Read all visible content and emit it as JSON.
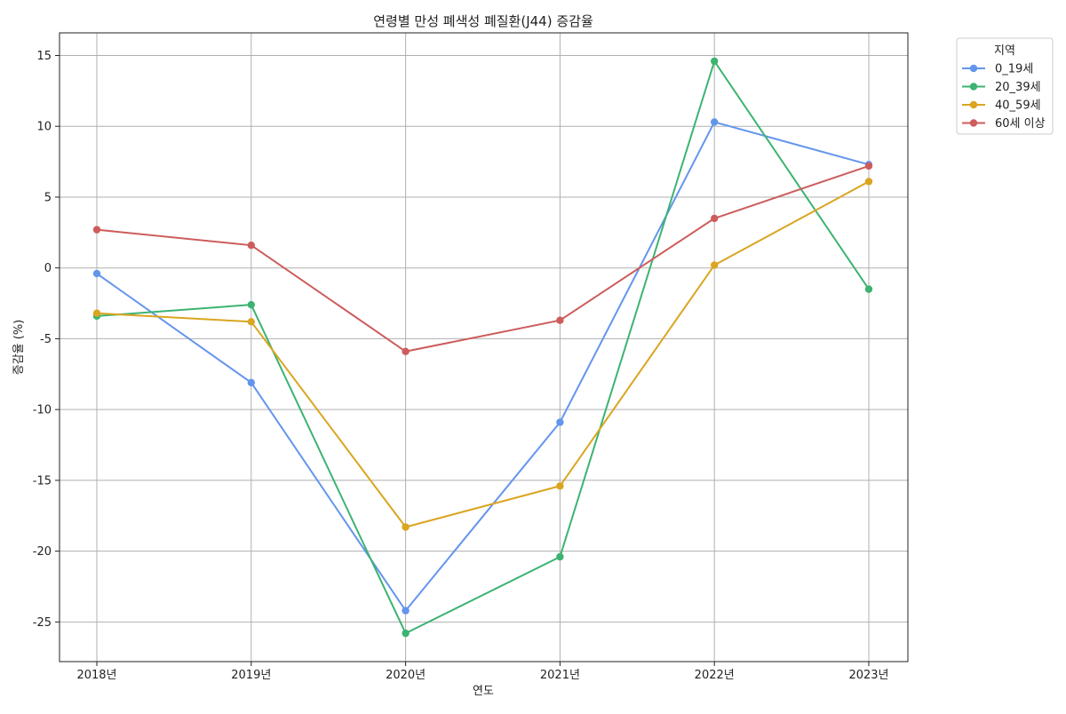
{
  "chart_data": {
    "type": "line",
    "title": "연령별 만성 폐색성 폐질환(J44) 증감율",
    "xlabel": "연도",
    "ylabel": "증감율 (%)",
    "categories": [
      "2018년",
      "2019년",
      "2020년",
      "2021년",
      "2022년",
      "2023년"
    ],
    "ylim": [
      -27.8,
      16.6
    ],
    "yticks": [
      15,
      10,
      5,
      0,
      -5,
      -10,
      -15,
      -20,
      -25
    ],
    "grid": true,
    "legend": {
      "title": "지역",
      "placement": "outside-top-right"
    },
    "series": [
      {
        "name": "0_19세",
        "color": "#6495ed",
        "values": [
          -0.4,
          -8.1,
          -24.2,
          -10.9,
          10.3,
          7.3
        ]
      },
      {
        "name": "20_39세",
        "color": "#3cb371",
        "values": [
          -3.4,
          -2.6,
          -25.8,
          -20.4,
          14.6,
          -1.5
        ]
      },
      {
        "name": "40_59세",
        "color": "#daa520",
        "values": [
          -3.2,
          -3.8,
          -18.3,
          -15.4,
          0.2,
          6.1
        ]
      },
      {
        "name": "60세 이상",
        "color": "#cd5c5c",
        "values": [
          2.7,
          1.6,
          -5.9,
          -3.7,
          3.5,
          7.2
        ]
      }
    ]
  }
}
